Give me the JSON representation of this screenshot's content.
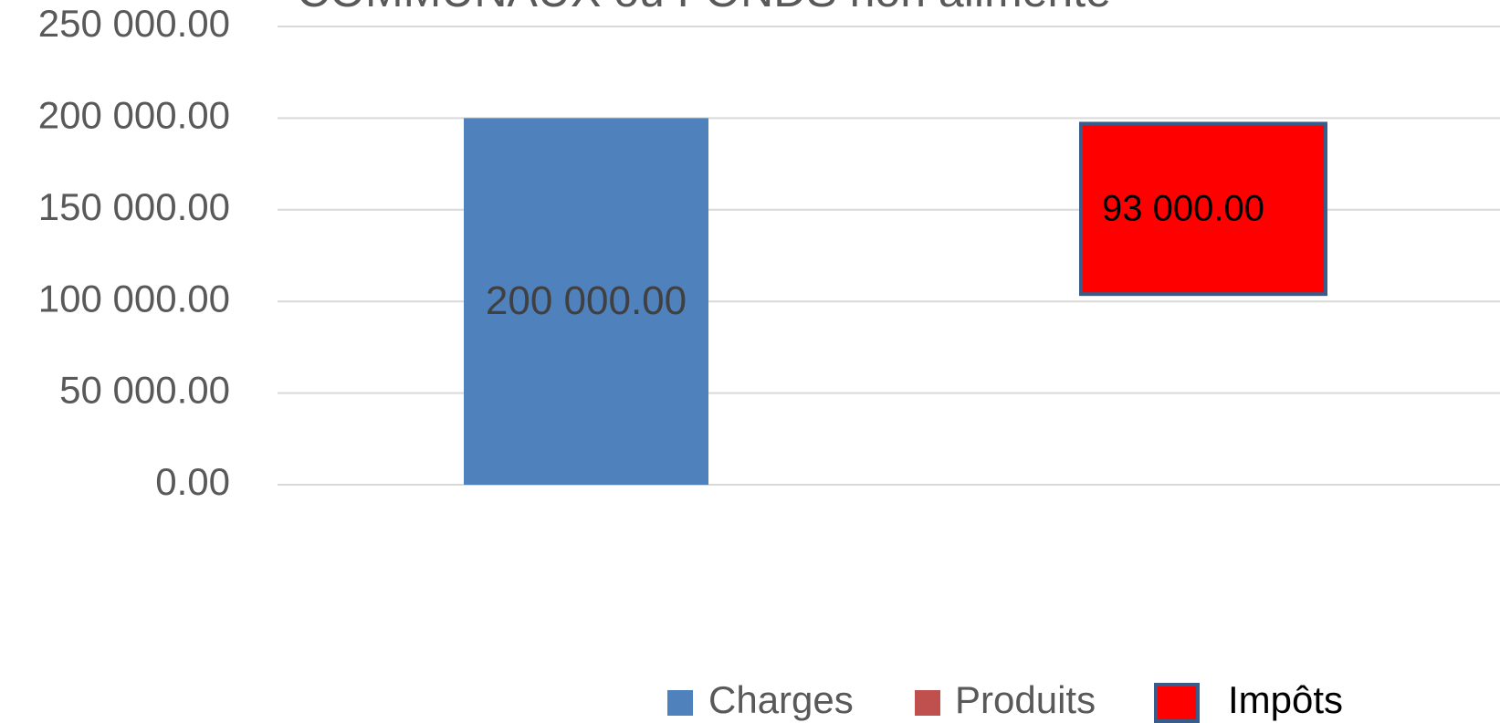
{
  "chart_data": {
    "type": "bar",
    "stacked": true,
    "title": "COMMUNAUX ou FONDS non alimenté",
    "categories": [
      null,
      null
    ],
    "series": [
      {
        "name": "Charges",
        "color": "#4f81bd",
        "values": [
          200000,
          null
        ],
        "value_labels": [
          "200 000.00",
          null
        ]
      },
      {
        "name": "Produits",
        "color": "#c0504d",
        "visible": false,
        "values": [
          null,
          104000
        ]
      },
      {
        "name": "Impôts",
        "color": "#ff0000",
        "edgecolor": "#385d8a",
        "values": [
          null,
          93000
        ],
        "value_labels": [
          null,
          "93 000.00"
        ]
      }
    ],
    "ylim": [
      0,
      250000
    ],
    "yticks": [
      {
        "value": 0,
        "label": "0.00"
      },
      {
        "value": 50000,
        "label": "50 000.00"
      },
      {
        "value": 100000,
        "label": "100 000.00"
      },
      {
        "value": 150000,
        "label": "150 000.00"
      },
      {
        "value": 200000,
        "label": "200 000.00"
      },
      {
        "value": 250000,
        "label": "250 000.00"
      }
    ],
    "grid": true,
    "legend": "bottom"
  }
}
